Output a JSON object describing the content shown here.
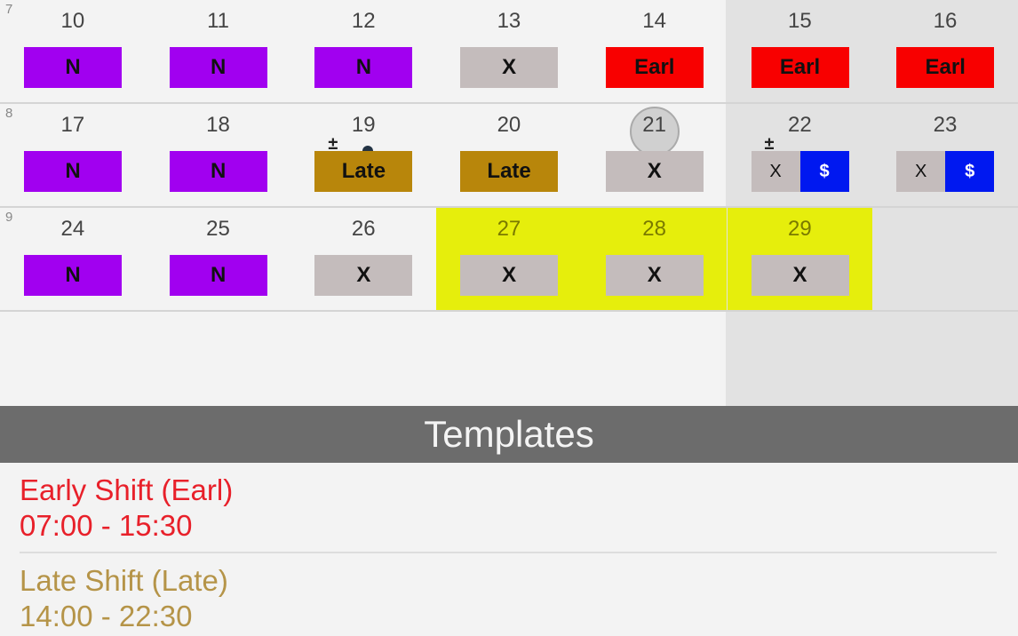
{
  "colors": {
    "N": "#a100f0",
    "X": "#c4bcbc",
    "Earl": "#f80000",
    "Late": "#b8860b",
    "S": "#0018f0",
    "highlight": "#e6ee0c"
  },
  "weeks": [
    {
      "number": "7",
      "days": [
        {
          "day": "10",
          "shift": "N"
        },
        {
          "day": "11",
          "shift": "N"
        },
        {
          "day": "12",
          "shift": "N"
        },
        {
          "day": "13",
          "shift": "X"
        },
        {
          "day": "14",
          "shift": "Earl"
        },
        {
          "day": "15",
          "shift": "Earl"
        },
        {
          "day": "16",
          "shift": "Earl"
        }
      ]
    },
    {
      "number": "8",
      "days": [
        {
          "day": "17",
          "shift": "N"
        },
        {
          "day": "18",
          "shift": "N"
        },
        {
          "day": "19",
          "shift": "Late",
          "mark": "±",
          "dot": true
        },
        {
          "day": "20",
          "shift": "Late"
        },
        {
          "day": "21",
          "shift": "X",
          "today": true
        },
        {
          "day": "22",
          "shift": "X",
          "extra": "$",
          "mark": "±"
        },
        {
          "day": "23",
          "shift": "X",
          "extra": "$"
        }
      ]
    },
    {
      "number": "9",
      "days": [
        {
          "day": "24",
          "shift": "N"
        },
        {
          "day": "25",
          "shift": "N"
        },
        {
          "day": "26",
          "shift": "X"
        },
        {
          "day": "27",
          "shift": "X",
          "highlight": true
        },
        {
          "day": "28",
          "shift": "X",
          "highlight": true
        },
        {
          "day": "29",
          "shift": "X",
          "highlight": true
        }
      ]
    }
  ],
  "templates": {
    "title": "Templates",
    "items": [
      {
        "name": "Early Shift (Earl)",
        "time": "07:00 - 15:30",
        "color": "#e8202a"
      },
      {
        "name": "Late Shift (Late)",
        "time": "14:00 - 22:30",
        "color": "#b59448"
      }
    ]
  }
}
